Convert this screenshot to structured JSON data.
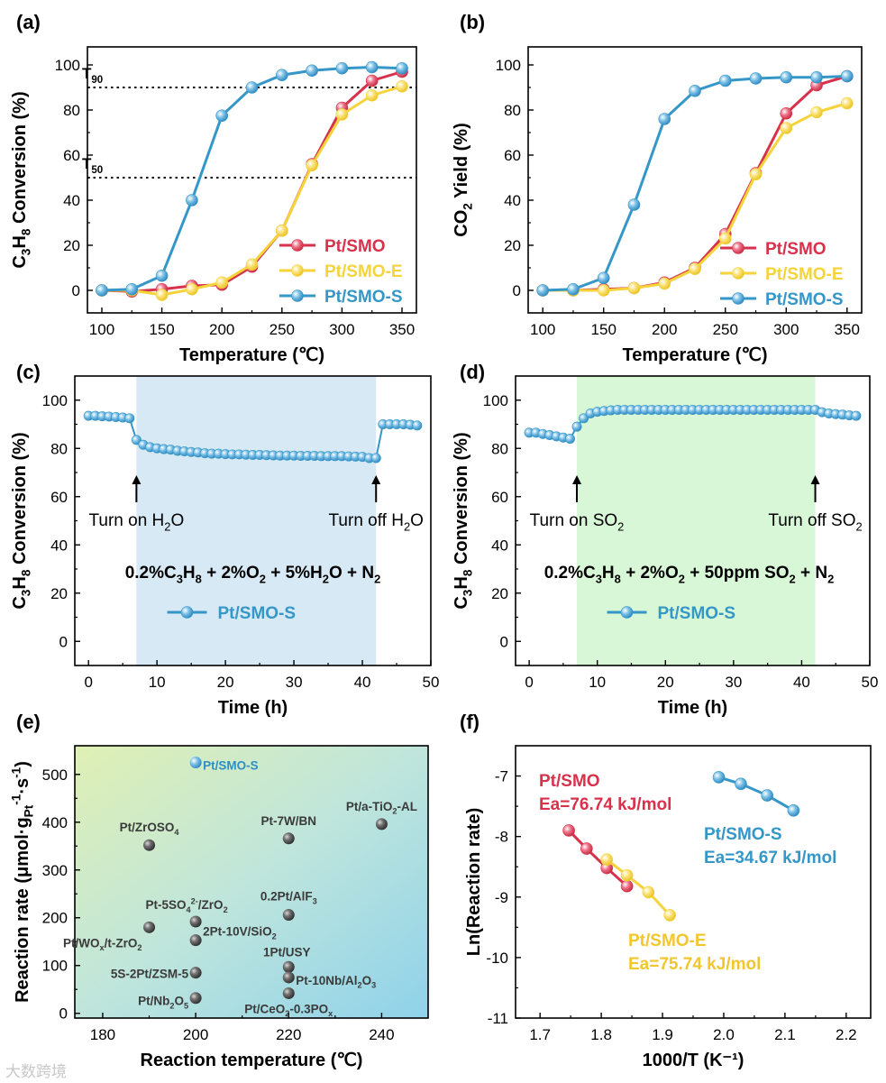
{
  "chart_data": [
    {
      "panel": "(a)",
      "type": "line",
      "xlabel": "Temperature (℃)",
      "ylabel_parts": [
        {
          "t": "C"
        },
        {
          "t": "3",
          "s": "sub"
        },
        {
          "t": "H"
        },
        {
          "t": "8",
          "s": "sub"
        },
        {
          "t": " Conversion (%)"
        }
      ],
      "xlim": [
        88,
        362
      ],
      "ylim": [
        -10,
        108
      ],
      "xticks": [
        100,
        150,
        200,
        250,
        300,
        350
      ],
      "yticks": [
        0,
        20,
        40,
        60,
        80,
        100
      ],
      "x": [
        100,
        125,
        150,
        175,
        200,
        225,
        250,
        275,
        300,
        325,
        350
      ],
      "series": [
        {
          "name": "Pt/SMO",
          "color": "#d8314c",
          "values": [
            0,
            -0.5,
            0.5,
            2,
            2.5,
            10.5,
            26.5,
            56,
            81,
            93,
            97
          ]
        },
        {
          "name": "Pt/SMO-E",
          "color": "#f5d33a",
          "values": [
            0,
            0,
            -2,
            0.5,
            3.5,
            11.5,
            26.5,
            55.5,
            78,
            86.5,
            90.5
          ]
        },
        {
          "name": "Pt/SMO-S",
          "color": "#3597c8",
          "values": [
            0,
            0.5,
            6.5,
            40,
            77.5,
            90,
            95.5,
            97.5,
            98.5,
            99,
            98.5
          ]
        }
      ],
      "hlines": [
        {
          "y": 90,
          "label": "T",
          "sub": "90"
        },
        {
          "y": 50,
          "label": "T",
          "sub": "50"
        }
      ],
      "legend": "lower-right"
    },
    {
      "panel": "(b)",
      "type": "line",
      "xlabel": "Temperature (℃)",
      "ylabel_parts": [
        {
          "t": "CO"
        },
        {
          "t": "2",
          "s": "sub"
        },
        {
          "t": " Yield (%)"
        }
      ],
      "xlim": [
        88,
        362
      ],
      "ylim": [
        -10,
        108
      ],
      "xticks": [
        100,
        150,
        200,
        250,
        300,
        350
      ],
      "yticks": [
        0,
        20,
        40,
        60,
        80,
        100
      ],
      "x": [
        100,
        125,
        150,
        175,
        200,
        225,
        250,
        275,
        300,
        325,
        350
      ],
      "series": [
        {
          "name": "Pt/SMO",
          "color": "#d8314c",
          "values": [
            0,
            0,
            0.5,
            1,
            3.5,
            10,
            25,
            52,
            78.5,
            91,
            95
          ]
        },
        {
          "name": "Pt/SMO-E",
          "color": "#f5d33a",
          "values": [
            0,
            0,
            0,
            1,
            3,
            9.5,
            23,
            51.5,
            72,
            79,
            83
          ]
        },
        {
          "name": "Pt/SMO-S",
          "color": "#3597c8",
          "values": [
            0,
            0.5,
            5.5,
            38,
            76,
            88.5,
            93,
            94,
            94.5,
            94.5,
            95
          ]
        }
      ],
      "legend": "lower-right"
    },
    {
      "panel": "(c)",
      "type": "line",
      "xlabel": "Time (h)",
      "ylabel_parts": [
        {
          "t": "C"
        },
        {
          "t": "3",
          "s": "sub"
        },
        {
          "t": "H"
        },
        {
          "t": "8",
          "s": "sub"
        },
        {
          "t": " Conversion (%)"
        }
      ],
      "xlim": [
        -2,
        50
      ],
      "ylim": [
        -10,
        110
      ],
      "xticks": [
        0,
        10,
        20,
        30,
        40,
        50
      ],
      "yticks": [
        0,
        20,
        40,
        60,
        80,
        100
      ],
      "shade": {
        "x0": 7,
        "x1": 42,
        "color": "#d6e9f4"
      },
      "series": [
        {
          "name": "Pt/SMO-S",
          "color": "#3597c8",
          "x": [
            0,
            1,
            2,
            3,
            4,
            5,
            6,
            7,
            8,
            9,
            10,
            11,
            12,
            13,
            14,
            15,
            16,
            17,
            18,
            19,
            20,
            21,
            22,
            23,
            24,
            25,
            26,
            27,
            28,
            29,
            30,
            31,
            32,
            33,
            34,
            35,
            36,
            37,
            38,
            39,
            40,
            41,
            42,
            43,
            44,
            45,
            46,
            47,
            48
          ],
          "values": [
            93.5,
            93.5,
            93.3,
            93.2,
            93,
            92.8,
            92.5,
            83.5,
            81.5,
            80.5,
            80,
            79.7,
            79.5,
            79,
            78.8,
            78.5,
            78.3,
            78,
            77.8,
            77.8,
            77.6,
            77.5,
            77.5,
            77.4,
            77.3,
            77.3,
            77.2,
            77.1,
            77,
            77,
            77,
            76.9,
            76.9,
            76.9,
            76.8,
            76.8,
            76.8,
            76.8,
            76.7,
            76.6,
            76.5,
            76,
            76,
            90,
            90,
            90,
            90,
            89.8,
            89.5
          ]
        }
      ],
      "annotations": [
        {
          "x": 7,
          "text": "Turn on H",
          "sub": "2",
          "tail": "O"
        },
        {
          "x": 42,
          "text": "Turn off H",
          "sub": "2",
          "tail": "O"
        }
      ],
      "reaction_parts": [
        {
          "t": "0.2%C"
        },
        {
          "t": "3",
          "s": "sub"
        },
        {
          "t": "H"
        },
        {
          "t": "8",
          "s": "sub"
        },
        {
          "t": " + 2%O"
        },
        {
          "t": "2",
          "s": "sub"
        },
        {
          "t": " + 5%H"
        },
        {
          "t": "2",
          "s": "sub"
        },
        {
          "t": "O + N"
        },
        {
          "t": "2",
          "s": "sub"
        }
      ]
    },
    {
      "panel": "(d)",
      "type": "line",
      "xlabel": "Time (h)",
      "ylabel_parts": [
        {
          "t": "C"
        },
        {
          "t": "3",
          "s": "sub"
        },
        {
          "t": "H"
        },
        {
          "t": "8",
          "s": "sub"
        },
        {
          "t": " Conversion (%)"
        }
      ],
      "xlim": [
        -2,
        50
      ],
      "ylim": [
        -10,
        110
      ],
      "xticks": [
        0,
        10,
        20,
        30,
        40,
        50
      ],
      "yticks": [
        0,
        20,
        40,
        60,
        80,
        100
      ],
      "shade": {
        "x0": 7,
        "x1": 42,
        "color": "#d8f7d6"
      },
      "series": [
        {
          "name": "Pt/SMO-S",
          "color": "#3597c8",
          "x": [
            0,
            1,
            2,
            3,
            4,
            5,
            6,
            7,
            8,
            9,
            10,
            11,
            12,
            13,
            14,
            15,
            16,
            17,
            18,
            19,
            20,
            21,
            22,
            23,
            24,
            25,
            26,
            27,
            28,
            29,
            30,
            31,
            32,
            33,
            34,
            35,
            36,
            37,
            38,
            39,
            40,
            41,
            42,
            43,
            44,
            45,
            46,
            47,
            48
          ],
          "values": [
            86.5,
            86.5,
            86,
            85.5,
            85,
            84.5,
            84,
            89,
            92.5,
            94.5,
            95.2,
            95.5,
            95.8,
            96,
            96,
            96,
            96,
            96,
            96,
            96,
            96,
            96,
            96,
            96,
            96,
            96,
            96,
            96,
            96,
            96,
            96,
            96,
            96,
            96,
            96,
            96,
            96,
            96,
            96,
            96,
            96,
            96,
            96,
            95,
            94.5,
            94.2,
            94,
            93.7,
            93.5
          ]
        }
      ],
      "annotations": [
        {
          "x": 7,
          "text": "Turn on SO",
          "sub": "2",
          "tail": ""
        },
        {
          "x": 42,
          "text": "Turn off SO",
          "sub": "2",
          "tail": ""
        }
      ],
      "reaction_parts": [
        {
          "t": "0.2%C"
        },
        {
          "t": "3",
          "s": "sub"
        },
        {
          "t": "H"
        },
        {
          "t": "8",
          "s": "sub"
        },
        {
          "t": " + 2%O"
        },
        {
          "t": "2",
          "s": "sub"
        },
        {
          "t": " + 50ppm SO"
        },
        {
          "t": "2",
          "s": "sub"
        },
        {
          "t": " + N"
        },
        {
          "t": "2",
          "s": "sub"
        }
      ]
    },
    {
      "panel": "(e)",
      "type": "scatter",
      "xlabel": "Reaction temperature (℃)",
      "ylabel_parts": [
        {
          "t": "Reaction rate (μmol·g"
        },
        {
          "t": "Pt",
          "s": "sub"
        },
        {
          "t": "-1",
          "s": "sup"
        },
        {
          "t": "·s"
        },
        {
          "t": "-1",
          "s": "sup"
        },
        {
          "t": ")"
        }
      ],
      "xlim": [
        174,
        250
      ],
      "ylim": [
        -10,
        560
      ],
      "xticks": [
        180,
        200,
        220,
        240
      ],
      "yticks": [
        0,
        100,
        200,
        300,
        400,
        500
      ],
      "points": [
        {
          "x": 200,
          "y": 525,
          "parts": [
            {
              "t": "Pt/SMO-S"
            }
          ],
          "highlight": true
        },
        {
          "x": 190,
          "y": 352,
          "parts": [
            {
              "t": "Pt/ZrOSO"
            },
            {
              "t": "4",
              "s": "sub"
            }
          ]
        },
        {
          "x": 220,
          "y": 366,
          "parts": [
            {
              "t": "Pt-7W/BN"
            }
          ]
        },
        {
          "x": 240,
          "y": 396,
          "parts": [
            {
              "t": "Pt/a-TiO"
            },
            {
              "t": "2",
              "s": "sub"
            },
            {
              "t": "-AL"
            }
          ]
        },
        {
          "x": 200,
          "y": 192,
          "parts": [
            {
              "t": "Pt-5SO"
            },
            {
              "t": "4",
              "s": "sub"
            },
            {
              "t": "2-",
              "s": "sup"
            },
            {
              "t": "/ZrO"
            },
            {
              "t": "2",
              "s": "sub"
            }
          ]
        },
        {
          "x": 220,
          "y": 206,
          "parts": [
            {
              "t": "0.2Pt/AlF"
            },
            {
              "t": "3",
              "s": "sub"
            }
          ]
        },
        {
          "x": 190,
          "y": 180,
          "parts": [
            {
              "t": "Pt/WO"
            },
            {
              "t": "x",
              "s": "sub"
            },
            {
              "t": "/t-ZrO"
            },
            {
              "t": "2",
              "s": "sub"
            }
          ]
        },
        {
          "x": 200,
          "y": 153,
          "parts": [
            {
              "t": "2Pt-10V/SiO"
            },
            {
              "t": "2",
              "s": "sub"
            }
          ]
        },
        {
          "x": 220,
          "y": 97,
          "parts": [
            {
              "t": "1Pt/USY"
            }
          ]
        },
        {
          "x": 220,
          "y": 75,
          "parts": [
            {
              "t": "Pt-10Nb/Al"
            },
            {
              "t": "2",
              "s": "sub"
            },
            {
              "t": "O"
            },
            {
              "t": "3",
              "s": "sub"
            }
          ]
        },
        {
          "x": 200,
          "y": 85,
          "parts": [
            {
              "t": "5S-2Pt/ZSM-5"
            }
          ]
        },
        {
          "x": 220,
          "y": 42,
          "parts": [
            {
              "t": "Pt/CeO"
            },
            {
              "t": "2",
              "s": "sub"
            },
            {
              "t": "-0.3PO"
            },
            {
              "t": "x",
              "s": "sub"
            }
          ]
        },
        {
          "x": 200,
          "y": 32,
          "parts": [
            {
              "t": "Pt/Nb"
            },
            {
              "t": "2",
              "s": "sub"
            },
            {
              "t": "O"
            },
            {
              "t": "5",
              "s": "sub"
            }
          ]
        }
      ]
    },
    {
      "panel": "(f)",
      "type": "line",
      "xlabel": "1000/T (K⁻¹)",
      "ylabel_parts": [
        {
          "t": "Ln(Reaction rate)"
        }
      ],
      "xlim": [
        1.66,
        2.24
      ],
      "ylim": [
        -11,
        -6.5
      ],
      "xticks": [
        1.7,
        1.8,
        1.9,
        2.0,
        2.1,
        2.2
      ],
      "yticks": [
        -11,
        -10,
        -9,
        -8,
        -7
      ],
      "series": [
        {
          "name": "Pt/SMO",
          "color": "#d8314c",
          "x": [
            1.747,
            1.776,
            1.809,
            1.842
          ],
          "values": [
            -7.9,
            -8.2,
            -8.52,
            -8.82
          ],
          "label": "Pt/SMO",
          "ea": "Ea=76.74 kJ/mol"
        },
        {
          "name": "Pt/SMO-E",
          "color": "#f5d33a",
          "x": [
            1.809,
            1.842,
            1.877,
            1.912
          ],
          "values": [
            -8.38,
            -8.64,
            -8.92,
            -9.3
          ],
          "label": "Pt/SMO-E",
          "ea": "Ea=75.74 kJ/mol"
        },
        {
          "name": "Pt/SMO-S",
          "color": "#3597c8",
          "x": [
            1.992,
            2.028,
            2.071,
            2.114
          ],
          "values": [
            -7.02,
            -7.13,
            -7.32,
            -7.57
          ],
          "label": "Pt/SMO-S",
          "ea": "Ea=34.67 kJ/mol"
        }
      ]
    }
  ],
  "watermark": "大数跨境"
}
